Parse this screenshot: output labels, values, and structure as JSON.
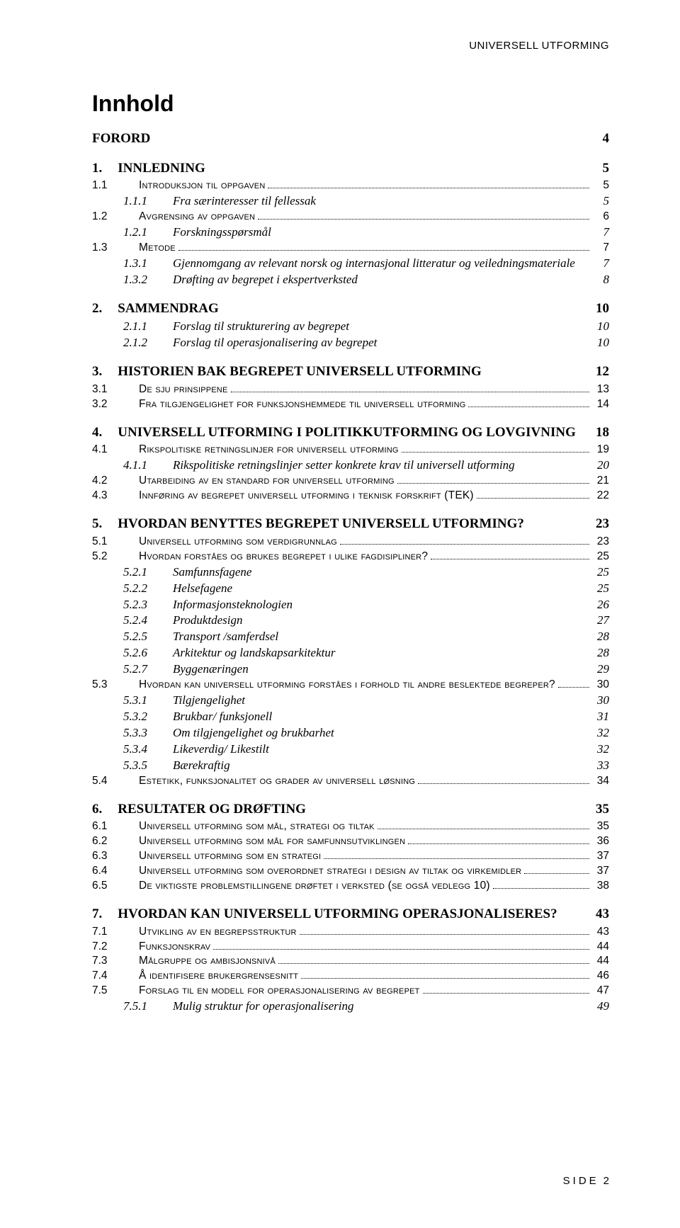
{
  "running_header": "UNIVERSELL UTFORMING",
  "title": "Innhold",
  "footer_label": "SIDE",
  "footer_page": "2",
  "entries": [
    {
      "level": "h1nn",
      "num": "",
      "label": "FORORD",
      "page": "4",
      "leader": false
    },
    {
      "level": "h1",
      "num": "1.",
      "label": "INNLEDNING",
      "page": "5",
      "leader": false
    },
    {
      "level": "h2",
      "num": "1.1",
      "label": "Introduksjon til oppgaven",
      "page": "5",
      "leader": true
    },
    {
      "level": "h3",
      "num": "1.1.1",
      "label": "Fra særinteresser til fellessak",
      "page": "5",
      "leader": false
    },
    {
      "level": "h2",
      "num": "1.2",
      "label": "Avgrensing av oppgaven",
      "page": "6",
      "leader": true
    },
    {
      "level": "h3",
      "num": "1.2.1",
      "label": "Forskningsspørsmål",
      "page": "7",
      "leader": false
    },
    {
      "level": "h2",
      "num": "1.3",
      "label": "Metode",
      "page": "7",
      "leader": true
    },
    {
      "level": "h3",
      "num": "1.3.1",
      "label": "Gjennomgang av relevant norsk og internasjonal litteratur og veiledningsmateriale",
      "page": "7",
      "leader": false
    },
    {
      "level": "h3",
      "num": "1.3.2",
      "label": "Drøfting av begrepet i ekspertverksted",
      "page": "8",
      "leader": false
    },
    {
      "level": "h1",
      "num": "2.",
      "label": "SAMMENDRAG",
      "page": "10",
      "leader": false
    },
    {
      "level": "h3",
      "num": "2.1.1",
      "label": "Forslag til strukturering av begrepet",
      "page": "10",
      "leader": false
    },
    {
      "level": "h3",
      "num": "2.1.2",
      "label": "Forslag til operasjonalisering av begrepet",
      "page": "10",
      "leader": false
    },
    {
      "level": "h1",
      "num": "3.",
      "label": "HISTORIEN BAK BEGREPET UNIVERSELL UTFORMING",
      "page": "12",
      "leader": false
    },
    {
      "level": "h2",
      "num": "3.1",
      "label": "De sju prinsippene",
      "page": "13",
      "leader": true
    },
    {
      "level": "h2",
      "num": "3.2",
      "label": "Fra tilgjengelighet for funksjonshemmede til universell utforming",
      "page": "14",
      "leader": true
    },
    {
      "level": "h1",
      "num": "4.",
      "label": "UNIVERSELL UTFORMING I POLITIKKUTFORMING OG LOVGIVNING",
      "page": "18",
      "leader": false
    },
    {
      "level": "h2",
      "num": "4.1",
      "label": "Rikspolitiske retningslinjer for universell utforming",
      "page": "19",
      "leader": true
    },
    {
      "level": "h3",
      "num": "4.1.1",
      "label": "Rikspolitiske retningslinjer setter konkrete krav til universell utforming",
      "page": "20",
      "leader": false
    },
    {
      "level": "h2",
      "num": "4.2",
      "label": "Utarbeiding av en standard for universell utforming",
      "page": "21",
      "leader": true
    },
    {
      "level": "h2",
      "num": "4.3",
      "label": "Innføring av begrepet universell utforming i teknisk forskrift (TEK)",
      "page": "22",
      "leader": true
    },
    {
      "level": "h1",
      "num": "5.",
      "label": "HVORDAN BENYTTES BEGREPET UNIVERSELL UTFORMING?",
      "page": "23",
      "leader": false
    },
    {
      "level": "h2",
      "num": "5.1",
      "label": "Universell utforming som verdigrunnlag",
      "page": "23",
      "leader": true
    },
    {
      "level": "h2",
      "num": "5.2",
      "label": "Hvordan forståes og brukes begrepet i ulike fagdisipliner?",
      "page": "25",
      "leader": true
    },
    {
      "level": "h3",
      "num": "5.2.1",
      "label": "Samfunnsfagene",
      "page": "25",
      "leader": false
    },
    {
      "level": "h3",
      "num": "5.2.2",
      "label": "Helsefagene",
      "page": "25",
      "leader": false
    },
    {
      "level": "h3",
      "num": "5.2.3",
      "label": "Informasjonsteknologien",
      "page": "26",
      "leader": false
    },
    {
      "level": "h3",
      "num": "5.2.4",
      "label": "Produktdesign",
      "page": "27",
      "leader": false
    },
    {
      "level": "h3",
      "num": "5.2.5",
      "label": "Transport /samferdsel",
      "page": "28",
      "leader": false
    },
    {
      "level": "h3",
      "num": "5.2.6",
      "label": "Arkitektur og landskapsarkitektur",
      "page": "28",
      "leader": false
    },
    {
      "level": "h3",
      "num": "5.2.7",
      "label": "Byggenæringen",
      "page": "29",
      "leader": false
    },
    {
      "level": "h2",
      "num": "5.3",
      "label": "Hvordan kan universell utforming forståes i forhold til andre beslektede begreper?",
      "page": "30",
      "leader": true
    },
    {
      "level": "h3",
      "num": "5.3.1",
      "label": "Tilgjengelighet",
      "page": "30",
      "leader": false
    },
    {
      "level": "h3",
      "num": "5.3.2",
      "label": "Brukbar/ funksjonell",
      "page": "31",
      "leader": false
    },
    {
      "level": "h3",
      "num": "5.3.3",
      "label": "Om tilgjengelighet og brukbarhet",
      "page": "32",
      "leader": false
    },
    {
      "level": "h3",
      "num": "5.3.4",
      "label": "Likeverdig/ Likestilt",
      "page": "32",
      "leader": false
    },
    {
      "level": "h3",
      "num": "5.3.5",
      "label": "Bærekraftig",
      "page": "33",
      "leader": false
    },
    {
      "level": "h2",
      "num": "5.4",
      "label": "Estetikk, funksjonalitet og grader av universell løsning",
      "page": "34",
      "leader": true
    },
    {
      "level": "h1",
      "num": "6.",
      "label": "RESULTATER OG DRØFTING",
      "page": "35",
      "leader": false
    },
    {
      "level": "h2",
      "num": "6.1",
      "label": "Universell utforming som mål, strategi og tiltak",
      "page": "35",
      "leader": true
    },
    {
      "level": "h2",
      "num": "6.2",
      "label": "Universell utforming som mål for samfunnsutviklingen",
      "page": "36",
      "leader": true
    },
    {
      "level": "h2",
      "num": "6.3",
      "label": "Universell utforming som en strategi",
      "page": "37",
      "leader": true
    },
    {
      "level": "h2",
      "num": "6.4",
      "label": "Universell utforming som overordnet strategi i design av tiltak og virkemidler",
      "page": "37",
      "leader": true
    },
    {
      "level": "h2",
      "num": "6.5",
      "label": "De viktigste problemstillingene drøftet i verksted (se også vedlegg 10)",
      "page": "38",
      "leader": true
    },
    {
      "level": "h1",
      "num": "7.",
      "label": "HVORDAN KAN UNIVERSELL UTFORMING OPERASJONALISERES?",
      "page": "43",
      "leader": false
    },
    {
      "level": "h2",
      "num": "7.1",
      "label": "Utvikling av en begrepsstruktur",
      "page": "43",
      "leader": true
    },
    {
      "level": "h2",
      "num": "7.2",
      "label": "Funksjonskrav",
      "page": "44",
      "leader": true
    },
    {
      "level": "h2",
      "num": "7.3",
      "label": "Målgruppe og ambisjonsnivå",
      "page": "44",
      "leader": true
    },
    {
      "level": "h2",
      "num": "7.4",
      "label": "Å identifisere brukergrensesnitt",
      "page": "46",
      "leader": true
    },
    {
      "level": "h2",
      "num": "7.5",
      "label": "Forslag til en modell for operasjonalisering av begrepet",
      "page": "47",
      "leader": true
    },
    {
      "level": "h3",
      "num": "7.5.1",
      "label": "Mulig struktur for operasjonalisering",
      "page": "49",
      "leader": false
    }
  ]
}
